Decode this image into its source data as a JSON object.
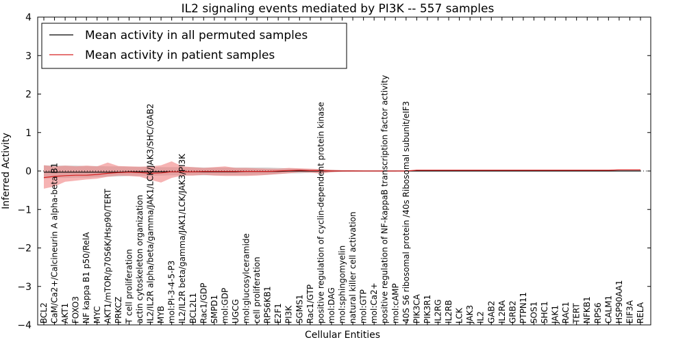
{
  "chart_data": {
    "type": "line",
    "title": "IL2 signaling events mediated by PI3K -- 557 samples",
    "xlabel": "Cellular Entities",
    "ylabel": "Inferred Activity",
    "ylim": [
      -4,
      4
    ],
    "yticks": [
      -4,
      -3,
      -2,
      -1,
      0,
      1,
      2,
      3,
      4
    ],
    "grid": false,
    "legend_position": "top-left",
    "colors": {
      "permuted": "#000000",
      "patient": "#d62020",
      "patient_band": "#f08080",
      "permuted_band": "#c8c8c8"
    },
    "x_tick_labels": [
      "BCL2",
      "CaM/Ca2+/Calcineurin A alpha-beta B1",
      "AKT1",
      "FOXO3",
      "NF kappa B1 p50/RelA",
      "MYC",
      "AKT1/mTOR/p70S6K/Hsp90/TERT",
      "PRKCZ",
      "T cell proliferation",
      "actin cytoskeleton organization",
      "IL2/IL2R alpha/beta/gamma/JAK1/LCK/JAK3/SHC/GAB2",
      "MYB",
      "mol:PI-3-4-5-P3",
      "IL2/IL2R beta/gamma/JAK1/LCK/JAK3/PI3K",
      "BCL2L1",
      "Rac1/GDP",
      "SMPD1",
      "mol:GDP",
      "UGCG",
      "mol:glucosylceramide",
      "cell proliferation",
      "RPS6KB1",
      "E2F1",
      "PI3K",
      "SGMS1",
      "Rac1/GTP",
      "positive regulation of cyclin-dependent protein kinase",
      "mol:DAG",
      "mol:sphingomyelin",
      "natural killer cell activation",
      "mol:GTP",
      "mol:Ca2+",
      "positive regulation of NF-kappaB transcription factor activity",
      "mol:cAMP",
      "40S S6 ribosomal protein /40s Ribosomal subunit/eIF3",
      "PIK3CA",
      "PIK3R1",
      "IL2RG",
      "IL2RB",
      "LCK",
      "JAK3",
      "IL2",
      "GAB2",
      "IL2RA",
      "GRB2",
      "PTPN11",
      "SOS1",
      "SHC1",
      "JAK1",
      "RAC1",
      "TERT",
      "NFKB1",
      "RPS6",
      "CALM1",
      "HSP90AA1",
      "EIF3A",
      "RELA"
    ],
    "series": [
      {
        "name": "Mean activity in all permuted samples",
        "values": [
          -0.03,
          -0.03,
          -0.03,
          -0.03,
          -0.03,
          -0.03,
          -0.03,
          -0.03,
          -0.02,
          -0.02,
          -0.02,
          -0.02,
          -0.02,
          -0.02,
          -0.02,
          -0.02,
          -0.02,
          -0.02,
          -0.02,
          -0.01,
          -0.01,
          -0.01,
          -0.01,
          0.0,
          0.0,
          0.0,
          0.0,
          0.0,
          0.0,
          0.0,
          0.0,
          0.0,
          0.0,
          0.0,
          0.0,
          0.0,
          0.0,
          0.0,
          0.0,
          0.0,
          0.0,
          0.0,
          0.0,
          0.0,
          0.0,
          0.0,
          0.0,
          0.0,
          0.0,
          0.0,
          0.0,
          0.0,
          0.0,
          0.0,
          0.0,
          0.0,
          0.0
        ],
        "lower": [
          -0.2,
          -0.18,
          -0.18,
          -0.17,
          -0.17,
          -0.16,
          -0.15,
          -0.14,
          -0.13,
          -0.13,
          -0.12,
          -0.12,
          -0.11,
          -0.11,
          -0.11,
          -0.11,
          -0.11,
          -0.11,
          -0.11,
          -0.11,
          -0.1,
          -0.1,
          -0.08,
          -0.06,
          -0.06,
          -0.05,
          -0.04,
          -0.03,
          -0.02,
          -0.01,
          -0.01,
          -0.01,
          -0.01,
          -0.01,
          0.0,
          0.0,
          0.0,
          0.0,
          0.0,
          0.0,
          0.0,
          0.0,
          0.0,
          0.0,
          0.0,
          0.0,
          0.0,
          0.0,
          0.0,
          0.0,
          0.0,
          0.0,
          0.0,
          0.0,
          0.0,
          0.0,
          0.0
        ],
        "upper": [
          0.15,
          0.14,
          0.14,
          0.14,
          0.13,
          0.13,
          0.12,
          0.12,
          0.11,
          0.11,
          0.11,
          0.1,
          0.1,
          0.1,
          0.1,
          0.09,
          0.09,
          0.09,
          0.09,
          0.09,
          0.09,
          0.09,
          0.08,
          0.07,
          0.06,
          0.05,
          0.04,
          0.03,
          0.02,
          0.02,
          0.01,
          0.01,
          0.01,
          0.01,
          0.01,
          0.01,
          0.01,
          0.01,
          0.01,
          0.01,
          0.01,
          0.01,
          0.01,
          0.01,
          0.01,
          0.01,
          0.01,
          0.01,
          0.01,
          0.01,
          0.01,
          0.01,
          0.01,
          0.01,
          0.01,
          0.01,
          0.01
        ]
      },
      {
        "name": "Mean activity in patient samples",
        "values": [
          -0.17,
          -0.14,
          -0.12,
          -0.11,
          -0.11,
          -0.09,
          -0.06,
          -0.04,
          -0.03,
          -0.04,
          -0.06,
          -0.05,
          -0.02,
          -0.02,
          -0.02,
          -0.01,
          -0.01,
          -0.01,
          -0.01,
          -0.01,
          -0.01,
          -0.01,
          0.0,
          0.01,
          0.02,
          0.01,
          0.01,
          0.0,
          0.0,
          0.0,
          0.0,
          0.0,
          0.0,
          0.0,
          0.0,
          0.02,
          0.02,
          0.02,
          0.02,
          0.02,
          0.02,
          0.02,
          0.02,
          0.02,
          0.02,
          0.02,
          0.02,
          0.02,
          0.02,
          0.02,
          0.02,
          0.02,
          0.02,
          0.02,
          0.03,
          0.03,
          0.03
        ],
        "lower": [
          -0.46,
          -0.4,
          -0.28,
          -0.25,
          -0.22,
          -0.2,
          -0.15,
          -0.12,
          -0.13,
          -0.15,
          -0.23,
          -0.3,
          -0.18,
          -0.12,
          -0.12,
          -0.1,
          -0.12,
          -0.13,
          -0.13,
          -0.13,
          -0.12,
          -0.1,
          -0.08,
          -0.06,
          -0.03,
          -0.04,
          -0.07,
          -0.03,
          -0.01,
          -0.01,
          -0.01,
          -0.01,
          -0.01,
          -0.01,
          0.0,
          0.01,
          0.01,
          0.01,
          0.01,
          0.01,
          0.01,
          0.01,
          0.01,
          0.01,
          0.01,
          0.01,
          0.01,
          0.01,
          0.01,
          0.01,
          0.01,
          0.01,
          0.01,
          0.01,
          0.02,
          0.02,
          0.02
        ],
        "upper": [
          0.15,
          0.12,
          0.14,
          0.12,
          0.14,
          0.12,
          0.22,
          0.13,
          0.12,
          0.11,
          0.12,
          0.15,
          0.25,
          0.12,
          0.1,
          0.08,
          0.1,
          0.12,
          0.08,
          0.08,
          0.07,
          0.06,
          0.06,
          0.08,
          0.07,
          0.06,
          0.05,
          0.03,
          0.02,
          0.02,
          0.01,
          0.01,
          0.01,
          0.01,
          0.01,
          0.03,
          0.03,
          0.03,
          0.03,
          0.03,
          0.03,
          0.03,
          0.03,
          0.03,
          0.03,
          0.03,
          0.03,
          0.03,
          0.03,
          0.03,
          0.03,
          0.03,
          0.03,
          0.03,
          0.04,
          0.04,
          0.04
        ]
      }
    ]
  }
}
